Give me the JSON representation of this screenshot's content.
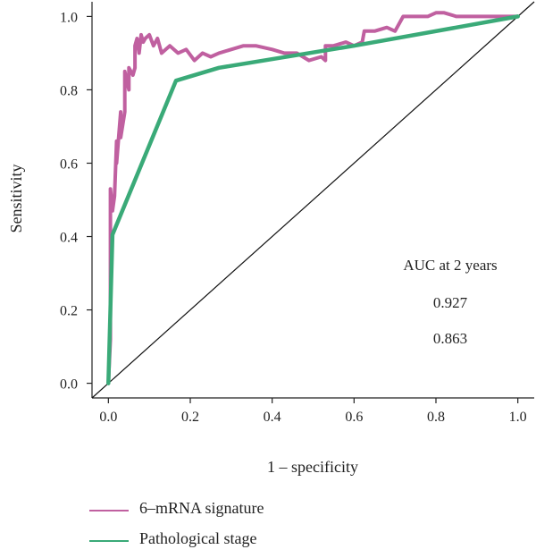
{
  "chart_data": {
    "type": "line",
    "xlabel": "1 – specificity",
    "ylabel": "Sensitivity",
    "xlim": [
      -0.04,
      1.04
    ],
    "ylim": [
      -0.04,
      1.04
    ],
    "x_ticks": [
      "0.0",
      "0.2",
      "0.4",
      "0.6",
      "0.8",
      "1.0"
    ],
    "y_ticks": [
      "0.0",
      "0.2",
      "0.4",
      "0.6",
      "0.8",
      "1.0"
    ],
    "grid": false,
    "legend_position": "bottom-left",
    "annotation": {
      "title": "AUC at 2 years",
      "values": [
        "0.927",
        "0.863"
      ]
    },
    "reference_line": {
      "x": [
        0,
        1
      ],
      "y": [
        0,
        1
      ],
      "color": "#111111"
    },
    "series": [
      {
        "name": "6–mRNA signature",
        "color": "#c060a0",
        "x": [
          0.0,
          0.005,
          0.005,
          0.01,
          0.015,
          0.02,
          0.02,
          0.03,
          0.03,
          0.04,
          0.04,
          0.05,
          0.05,
          0.06,
          0.065,
          0.065,
          0.07,
          0.075,
          0.08,
          0.085,
          0.09,
          0.1,
          0.11,
          0.12,
          0.13,
          0.15,
          0.17,
          0.19,
          0.21,
          0.23,
          0.25,
          0.27,
          0.3,
          0.33,
          0.36,
          0.4,
          0.43,
          0.46,
          0.49,
          0.52,
          0.53,
          0.53,
          0.55,
          0.58,
          0.6,
          0.62,
          0.625,
          0.65,
          0.68,
          0.7,
          0.72,
          0.75,
          0.78,
          0.8,
          0.82,
          0.85,
          0.88,
          0.92,
          0.96,
          1.0
        ],
        "y": [
          0.0,
          0.12,
          0.53,
          0.47,
          0.51,
          0.66,
          0.6,
          0.74,
          0.67,
          0.74,
          0.85,
          0.8,
          0.86,
          0.84,
          0.86,
          0.92,
          0.94,
          0.9,
          0.95,
          0.93,
          0.94,
          0.95,
          0.92,
          0.94,
          0.9,
          0.92,
          0.9,
          0.91,
          0.88,
          0.9,
          0.89,
          0.9,
          0.91,
          0.92,
          0.92,
          0.91,
          0.9,
          0.9,
          0.88,
          0.89,
          0.88,
          0.92,
          0.92,
          0.93,
          0.92,
          0.93,
          0.96,
          0.96,
          0.97,
          0.96,
          1.0,
          1.0,
          1.0,
          1.01,
          1.01,
          1.0,
          1.0,
          1.0,
          1.0,
          1.0
        ]
      },
      {
        "name": "Pathological stage",
        "color": "#3aaa78",
        "x": [
          0.0,
          0.01,
          0.165,
          0.27,
          0.6,
          1.0
        ],
        "y": [
          0.0,
          0.405,
          0.825,
          0.86,
          0.92,
          1.0
        ]
      }
    ]
  }
}
